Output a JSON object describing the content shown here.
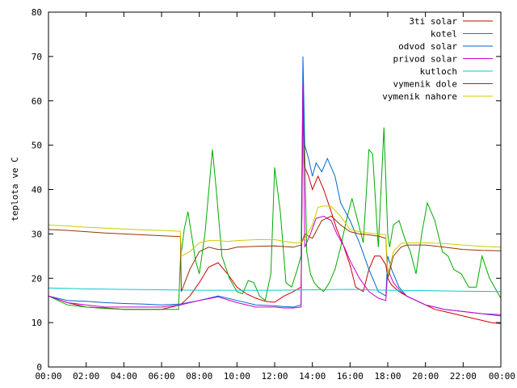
{
  "chart_data": {
    "type": "line",
    "title": "",
    "xlabel": "",
    "ylabel": "teplota ve C",
    "ylim": [
      0,
      80
    ],
    "xlim": [
      0,
      24
    ],
    "x_tick_labels": [
      "00:00",
      "02:00",
      "04:00",
      "06:00",
      "08:00",
      "10:00",
      "12:00",
      "14:00",
      "16:00",
      "18:00",
      "20:00",
      "22:00",
      "00:00"
    ],
    "y_tick_labels": [
      "0",
      "10",
      "20",
      "30",
      "40",
      "50",
      "60",
      "70",
      "80"
    ],
    "grid": false,
    "legend_position": "top-right",
    "series": [
      {
        "name": "3ti solar",
        "color": "#cc0000",
        "x": [
          0,
          1,
          2,
          3,
          4,
          5,
          6,
          7,
          7.5,
          8,
          8.5,
          9,
          9.5,
          10,
          10.5,
          11,
          11.5,
          12,
          12.5,
          13,
          13.4,
          13.5,
          13.6,
          13.8,
          14,
          14.3,
          14.6,
          15,
          15.3,
          15.6,
          16,
          16.3,
          16.7,
          17,
          17.3,
          17.6,
          17.9,
          18,
          18.2,
          18.6,
          19,
          19.5,
          20,
          20.5,
          21,
          21.5,
          22,
          22.5,
          23,
          23.5,
          24
        ],
        "y": [
          16,
          14.5,
          13.5,
          13.3,
          13,
          13,
          13,
          14,
          16,
          19,
          22.5,
          23.5,
          21,
          18,
          16.5,
          15.5,
          14.8,
          14.6,
          16,
          17,
          18,
          57,
          45,
          43,
          40,
          43,
          40,
          35,
          31,
          28,
          23,
          18,
          17,
          22,
          25,
          25,
          23,
          20,
          18.5,
          17,
          16,
          15,
          14,
          13,
          12.5,
          12,
          11.5,
          11,
          10.5,
          10,
          9.8
        ]
      },
      {
        "name": "kotel",
        "color": "#00aa00",
        "x": [
          0,
          1,
          2,
          3,
          4,
          5,
          6,
          6.9,
          7,
          7.2,
          7.4,
          7.8,
          8,
          8.3,
          8.7,
          8.9,
          9.2,
          9.6,
          10,
          10.3,
          10.6,
          10.9,
          11.2,
          11.5,
          11.8,
          12,
          12.3,
          12.6,
          12.9,
          13.2,
          13.4,
          13.5,
          13.6,
          13.7,
          13.9,
          14.1,
          14.3,
          14.6,
          14.9,
          15.2,
          15.5,
          15.8,
          16.1,
          16.4,
          16.7,
          17,
          17.2,
          17.5,
          17.8,
          18,
          18.1,
          18.3,
          18.6,
          18.9,
          19.2,
          19.5,
          19.8,
          20.1,
          20.5,
          20.9,
          21.2,
          21.5,
          21.9,
          22.3,
          22.7,
          23,
          23.4,
          23.8,
          24
        ],
        "y": [
          16,
          14,
          13.5,
          13.2,
          13,
          13,
          13,
          13,
          24,
          31,
          35,
          24,
          21,
          30,
          49,
          40,
          25,
          20,
          17,
          16.5,
          19.5,
          19,
          16,
          15,
          21,
          45,
          35,
          19,
          18,
          22,
          25,
          65,
          48,
          26,
          21,
          19,
          18,
          17,
          19,
          22,
          27,
          33,
          38,
          33,
          28,
          49,
          48,
          27,
          54,
          30,
          27,
          32,
          33,
          29,
          26,
          21,
          30,
          37,
          33,
          26,
          25,
          22,
          21,
          18,
          18,
          25,
          20,
          17,
          15.5
        ]
      },
      {
        "name": "odvod solar",
        "color": "#0066cc",
        "x": [
          0,
          1,
          2,
          3,
          4,
          5,
          6,
          7,
          8,
          9,
          10,
          11,
          12,
          12.5,
          13,
          13.4,
          13.5,
          13.6,
          13.8,
          14,
          14.2,
          14.5,
          14.8,
          15.2,
          15.5,
          16,
          16.5,
          17,
          17.5,
          17.9,
          18,
          18.2,
          18.6,
          19,
          19.5,
          20,
          20.5,
          21,
          22,
          23,
          24
        ],
        "y": [
          16,
          15,
          14.8,
          14.5,
          14.3,
          14.2,
          14,
          14.2,
          15,
          16,
          15,
          14,
          13.8,
          13.6,
          13.5,
          14,
          70,
          50,
          47,
          43,
          46,
          44,
          47,
          43,
          37,
          33,
          28,
          22,
          17,
          16,
          25,
          22,
          18,
          16,
          15,
          14,
          13.5,
          13,
          12.5,
          12,
          11.5
        ]
      },
      {
        "name": "privod solar",
        "color": "#cc00cc",
        "x": [
          0,
          1,
          2,
          3,
          4,
          5,
          6,
          7,
          8,
          9,
          10,
          11,
          12,
          12.5,
          13,
          13.4,
          13.5,
          13.6,
          13.9,
          14.2,
          14.6,
          15,
          15.3,
          15.7,
          16,
          16.5,
          17,
          17.5,
          17.9,
          18,
          18.3,
          18.7,
          19,
          19.5,
          20,
          21,
          22,
          23,
          24
        ],
        "y": [
          16,
          14.5,
          14,
          13.5,
          13.5,
          13.5,
          13.5,
          14,
          15,
          15.8,
          14.5,
          13.5,
          13.5,
          13.3,
          13.3,
          13.5,
          64,
          27,
          30,
          33.5,
          34,
          33,
          30,
          27,
          24,
          20,
          17,
          15.5,
          15,
          22,
          19,
          17,
          16,
          15,
          14,
          13,
          12.5,
          12,
          11.8
        ]
      },
      {
        "name": "kutloch",
        "color": "#00cccc",
        "x": [
          0,
          2,
          4,
          6,
          8,
          10,
          12,
          14,
          16,
          18,
          20,
          22,
          24
        ],
        "y": [
          17.8,
          17.6,
          17.5,
          17.4,
          17.3,
          17.3,
          17.3,
          17.4,
          17.5,
          17.3,
          17.2,
          17.1,
          17.0
        ]
      },
      {
        "name": "vymenik dole",
        "color": "#993300",
        "x": [
          0,
          1,
          2,
          3,
          4,
          5,
          6,
          7,
          7.05,
          7.5,
          8,
          8.5,
          9,
          9.5,
          10,
          11,
          12,
          13,
          13.4,
          13.6,
          14,
          14.5,
          15,
          15.5,
          16,
          16.5,
          17,
          17.5,
          17.9,
          18,
          18.3,
          18.7,
          19,
          20,
          21,
          22,
          23,
          24
        ],
        "y": [
          31,
          30.8,
          30.5,
          30.2,
          30,
          29.8,
          29.6,
          29.4,
          17,
          22,
          26,
          27,
          26.5,
          26.5,
          27,
          27.2,
          27.3,
          27,
          27.5,
          30,
          29,
          33,
          34,
          32,
          30.5,
          30,
          29.8,
          29.5,
          29,
          20,
          25,
          27,
          27.5,
          27.5,
          27,
          26.5,
          26.3,
          26.2
        ]
      },
      {
        "name": "vymenik nahore",
        "color": "#cccc00",
        "x": [
          0,
          1,
          2,
          3,
          4,
          5,
          6,
          7,
          7.05,
          7.5,
          8,
          8.5,
          9,
          9.5,
          10,
          11,
          12,
          13,
          13.4,
          13.6,
          14,
          14.3,
          14.6,
          15,
          15.5,
          16,
          16.5,
          17,
          17.5,
          17.9,
          18,
          18.3,
          18.7,
          19,
          20,
          21,
          22,
          23,
          24
        ],
        "y": [
          32,
          31.8,
          31.5,
          31.3,
          31.1,
          30.9,
          30.8,
          30.6,
          25,
          26,
          28,
          28.5,
          28.5,
          28.3,
          28.5,
          28.7,
          28.7,
          28,
          28,
          29,
          32,
          36,
          36.3,
          36.2,
          34,
          31,
          30.5,
          30.2,
          30,
          29.8,
          21,
          26,
          27.8,
          28,
          28,
          27.8,
          27.5,
          27.2,
          27
        ]
      }
    ]
  }
}
